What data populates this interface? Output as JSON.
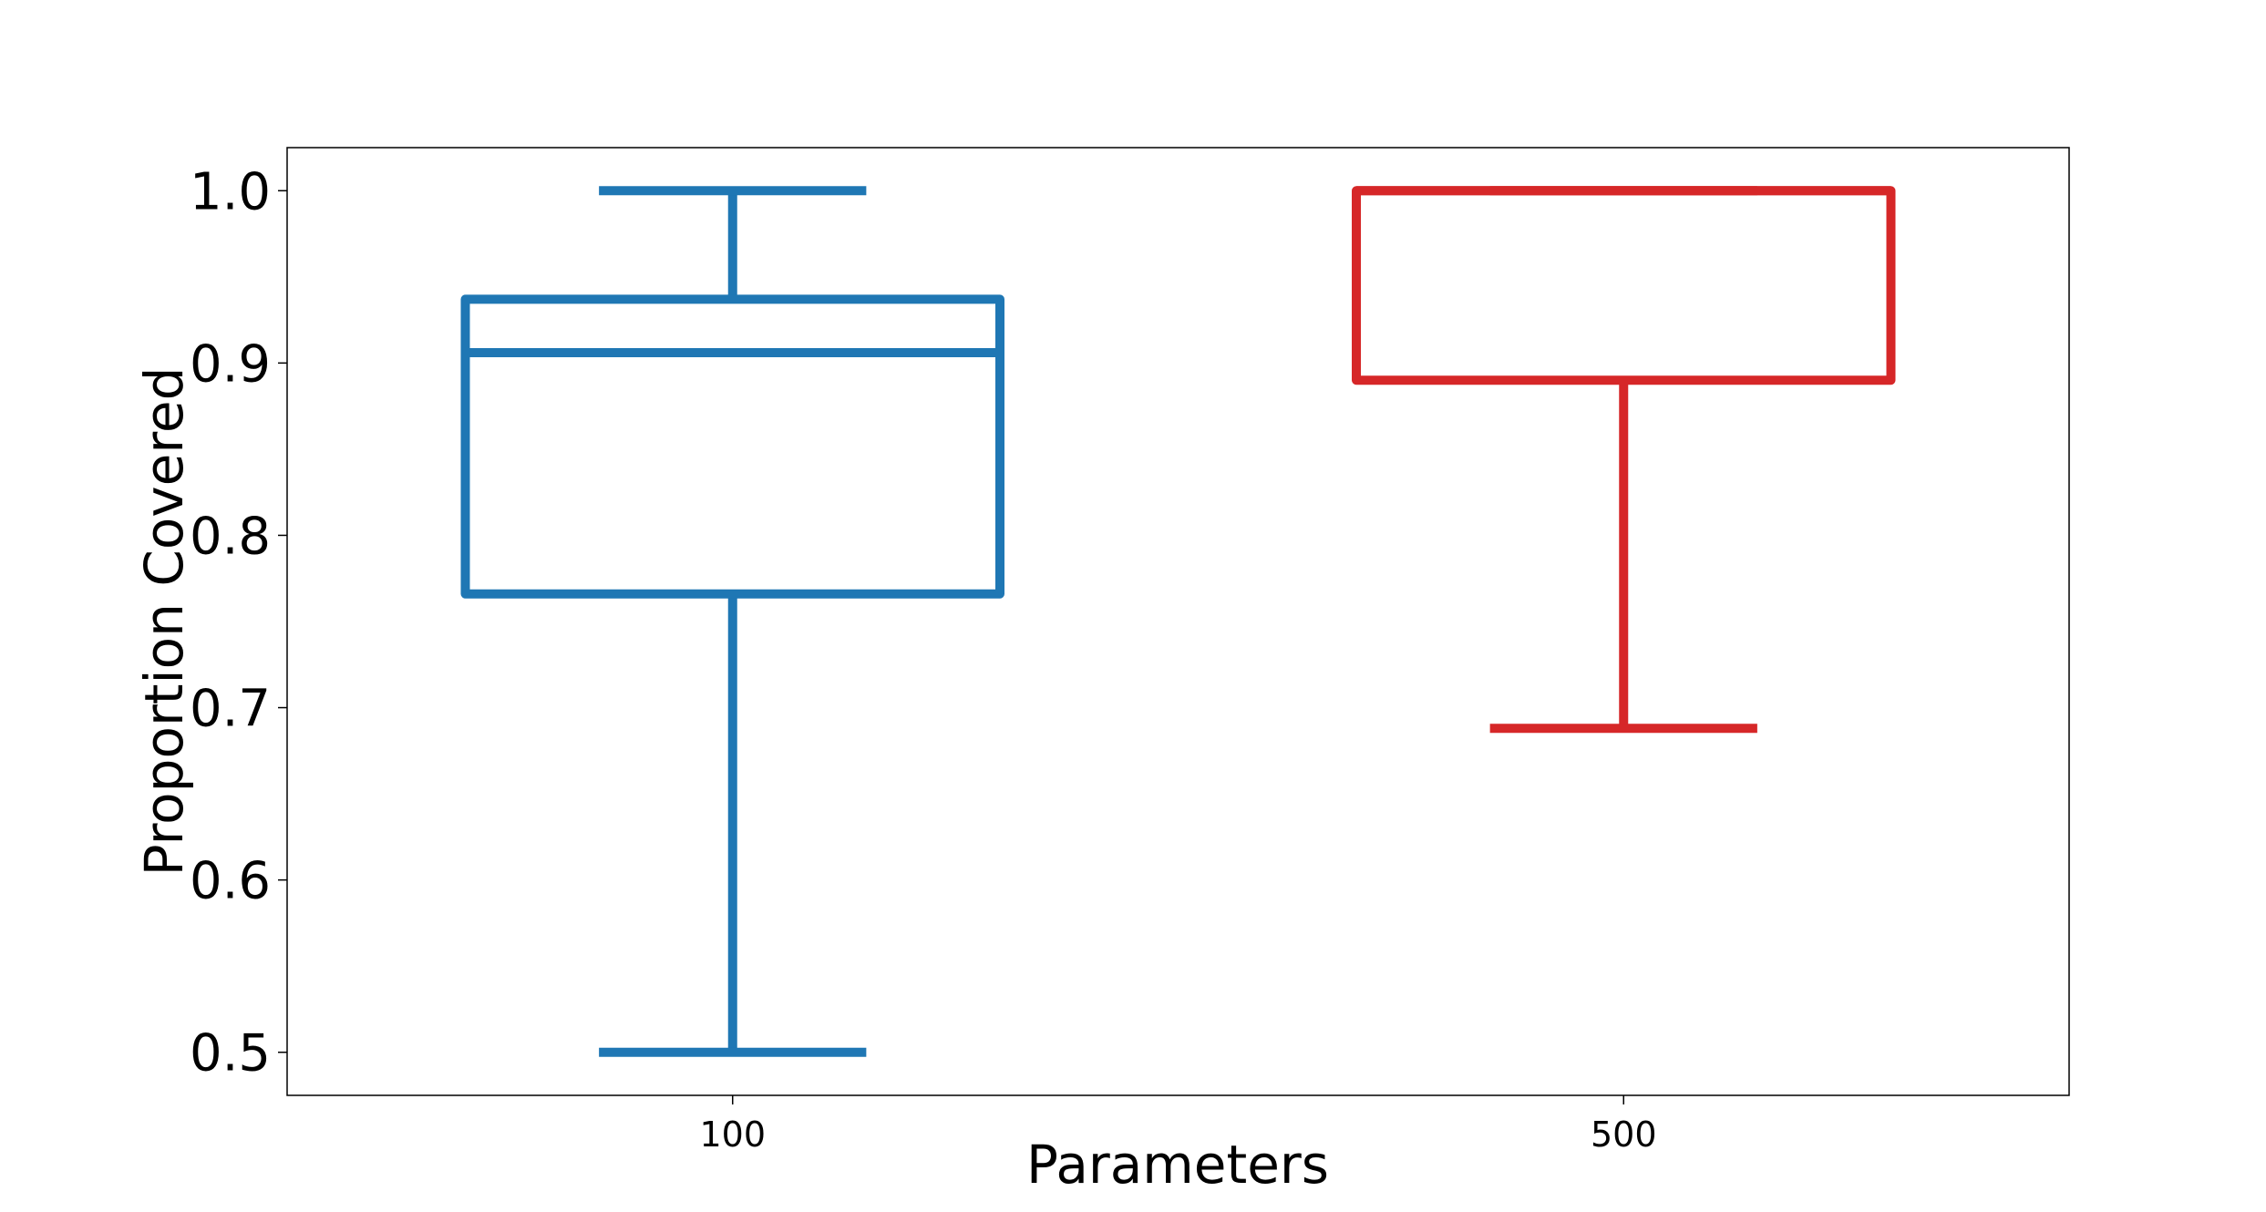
{
  "chart_data": {
    "type": "boxplot",
    "title": "",
    "xlabel": "Parameters",
    "ylabel": "Proportion Covered",
    "ylim": [
      0.475,
      1.025
    ],
    "yticks": [
      "0.5",
      "0.6",
      "0.7",
      "0.8",
      "0.9",
      "1.0"
    ],
    "grid": false,
    "categories": [
      "100",
      "500"
    ],
    "boxes": [
      {
        "category": "100",
        "whisker_low": 0.5,
        "q1": 0.766,
        "median": 0.906,
        "q3": 0.937,
        "whisker_high": 1.0,
        "color": "#1f77b4"
      },
      {
        "category": "500",
        "whisker_low": 0.688,
        "q1": 0.89,
        "median": 1.0,
        "q3": 1.0,
        "whisker_high": 1.0,
        "color": "#d62728"
      }
    ]
  }
}
